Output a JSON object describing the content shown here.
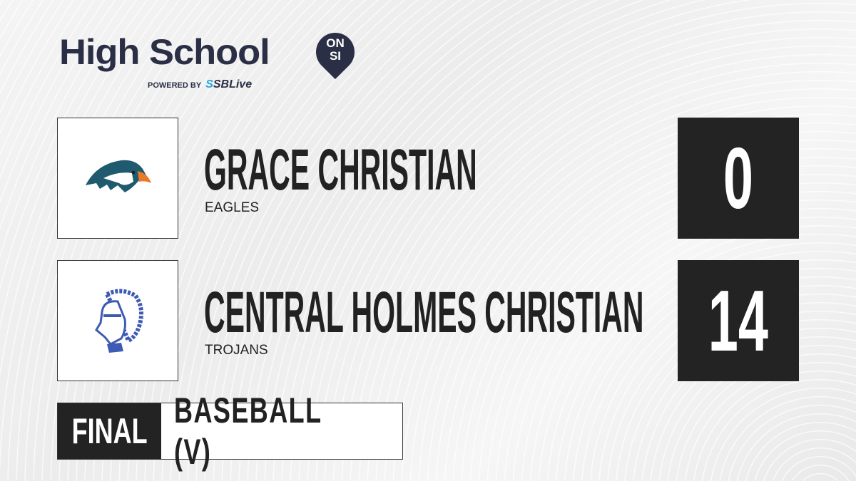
{
  "brand": {
    "title": "High School",
    "badge_line1": "ON",
    "badge_line2": "SI",
    "powered_by": "POWERED BY",
    "sbl_prefix": "S",
    "sbl_name": "SBLive"
  },
  "teams": [
    {
      "name": "GRACE CHRISTIAN",
      "mascot": "EAGLES",
      "score": "0",
      "logo": "eagle-logo"
    },
    {
      "name": "CENTRAL HOLMES CHRISTIAN",
      "mascot": "TROJANS",
      "score": "14",
      "logo": "trojan-logo"
    }
  ],
  "game": {
    "status": "FINAL",
    "sport": "BASEBALL (V)"
  },
  "colors": {
    "brand_navy": "#2b2f45",
    "sblive_blue": "#22a8e6",
    "dark": "#232323",
    "eagle_teal": "#1f5a6e",
    "eagle_orange": "#e87a2a",
    "trojan_blue": "#3d5bb5"
  }
}
